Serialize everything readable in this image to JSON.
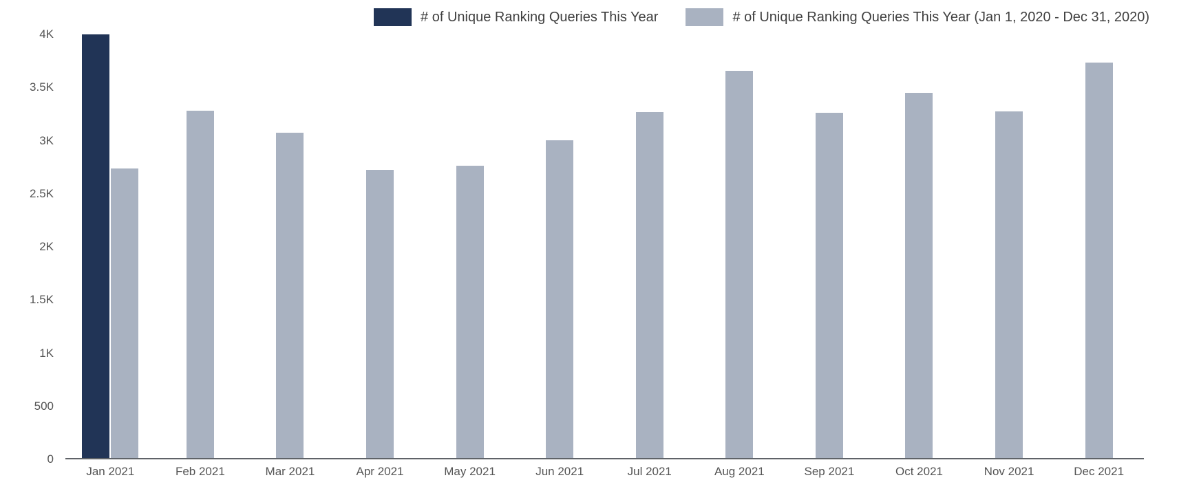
{
  "chart_data": {
    "type": "bar",
    "title": "",
    "xlabel": "",
    "ylabel": "",
    "ylim": [
      0,
      4000
    ],
    "grid": false,
    "legend_position": "top-right",
    "background": "#ffffff",
    "axis_line_color": "#5f6368",
    "categories": [
      "Jan 2021",
      "Feb 2021",
      "Mar 2021",
      "Apr 2021",
      "May 2021",
      "Jun 2021",
      "Jul 2021",
      "Aug 2021",
      "Sep 2021",
      "Oct 2021",
      "Nov 2021",
      "Dec 2021"
    ],
    "series": [
      {
        "name": "# of Unique Ranking Queries This Year",
        "color": "#213456",
        "values": [
          3985,
          null,
          null,
          null,
          null,
          null,
          null,
          null,
          null,
          null,
          null,
          null
        ]
      },
      {
        "name": "# of Unique Ranking Queries This Year (Jan 1, 2020 - Dec 31, 2020)",
        "color": "#a9b2c1",
        "values": [
          2725,
          3270,
          3065,
          2710,
          2750,
          2990,
          3255,
          3645,
          3250,
          3440,
          3265,
          3725
        ]
      }
    ],
    "yticks": [
      {
        "label": "0",
        "value": 0
      },
      {
        "label": "500",
        "value": 500
      },
      {
        "label": "1K",
        "value": 1000
      },
      {
        "label": "1.5K",
        "value": 1500
      },
      {
        "label": "2K",
        "value": 2000
      },
      {
        "label": "2.5K",
        "value": 2500
      },
      {
        "label": "3K",
        "value": 3000
      },
      {
        "label": "3.5K",
        "value": 3500
      },
      {
        "label": "4K",
        "value": 4000
      }
    ]
  }
}
